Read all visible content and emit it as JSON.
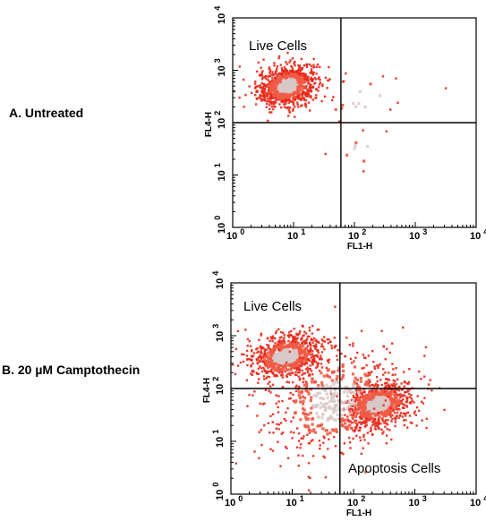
{
  "panels": [
    {
      "label": "A. Untreated"
    },
    {
      "label": "B. 20 µM Camptothecin"
    }
  ],
  "colors": {
    "dot_outer": "#e8281a",
    "dot_mid": "#f05a45",
    "dot_core": "#d8c8c8",
    "axis": "#000000"
  },
  "chart_data": [
    {
      "type": "scatter",
      "title": "",
      "xlabel": "FL1-H",
      "ylabel": "FL4-H",
      "xscale": "log",
      "yscale": "log",
      "xlim": [
        1,
        10000
      ],
      "ylim": [
        1,
        10000
      ],
      "x_ticks": [
        "10 0",
        "10 1",
        "10 2",
        "10 3",
        "10 4"
      ],
      "y_ticks": [
        "10 0",
        "10 1",
        "10 2",
        "10 3",
        "10 4"
      ],
      "quadrant_gates": {
        "x": 60,
        "y": 100
      },
      "annotations": [
        {
          "text": "Live Cells",
          "quadrant": "top-left"
        }
      ],
      "populations": [
        {
          "center_x": 8,
          "center_y": 500,
          "spread_log_x": 0.25,
          "spread_log_y": 0.2,
          "count": 900
        },
        {
          "center_x": 150,
          "center_y": 300,
          "spread_log_x": 0.5,
          "spread_log_y": 0.25,
          "count": 20
        },
        {
          "center_x": 150,
          "center_y": 30,
          "spread_log_x": 0.35,
          "spread_log_y": 0.25,
          "count": 10
        }
      ]
    },
    {
      "type": "scatter",
      "title": "",
      "xlabel": "FL1-H",
      "ylabel": "FL4-H",
      "xscale": "log",
      "yscale": "log",
      "xlim": [
        1,
        10000
      ],
      "ylim": [
        1,
        10000
      ],
      "x_ticks": [
        "10 0",
        "10 1",
        "10 2",
        "10 3",
        "10 4"
      ],
      "y_ticks": [
        "10 0",
        "10 1",
        "10 2",
        "10 3",
        "10 4"
      ],
      "quadrant_gates": {
        "x": 60,
        "y": 100
      },
      "annotations": [
        {
          "text": "Live Cells",
          "quadrant": "top-left"
        },
        {
          "text": "Apoptosis Cells",
          "quadrant": "bottom-right"
        }
      ],
      "populations": [
        {
          "center_x": 8,
          "center_y": 400,
          "spread_log_x": 0.3,
          "spread_log_y": 0.22,
          "count": 750
        },
        {
          "center_x": 250,
          "center_y": 50,
          "spread_log_x": 0.3,
          "spread_log_y": 0.22,
          "count": 750
        },
        {
          "center_x": 50,
          "center_y": 60,
          "spread_log_x": 0.55,
          "spread_log_y": 0.55,
          "count": 500
        }
      ]
    }
  ]
}
